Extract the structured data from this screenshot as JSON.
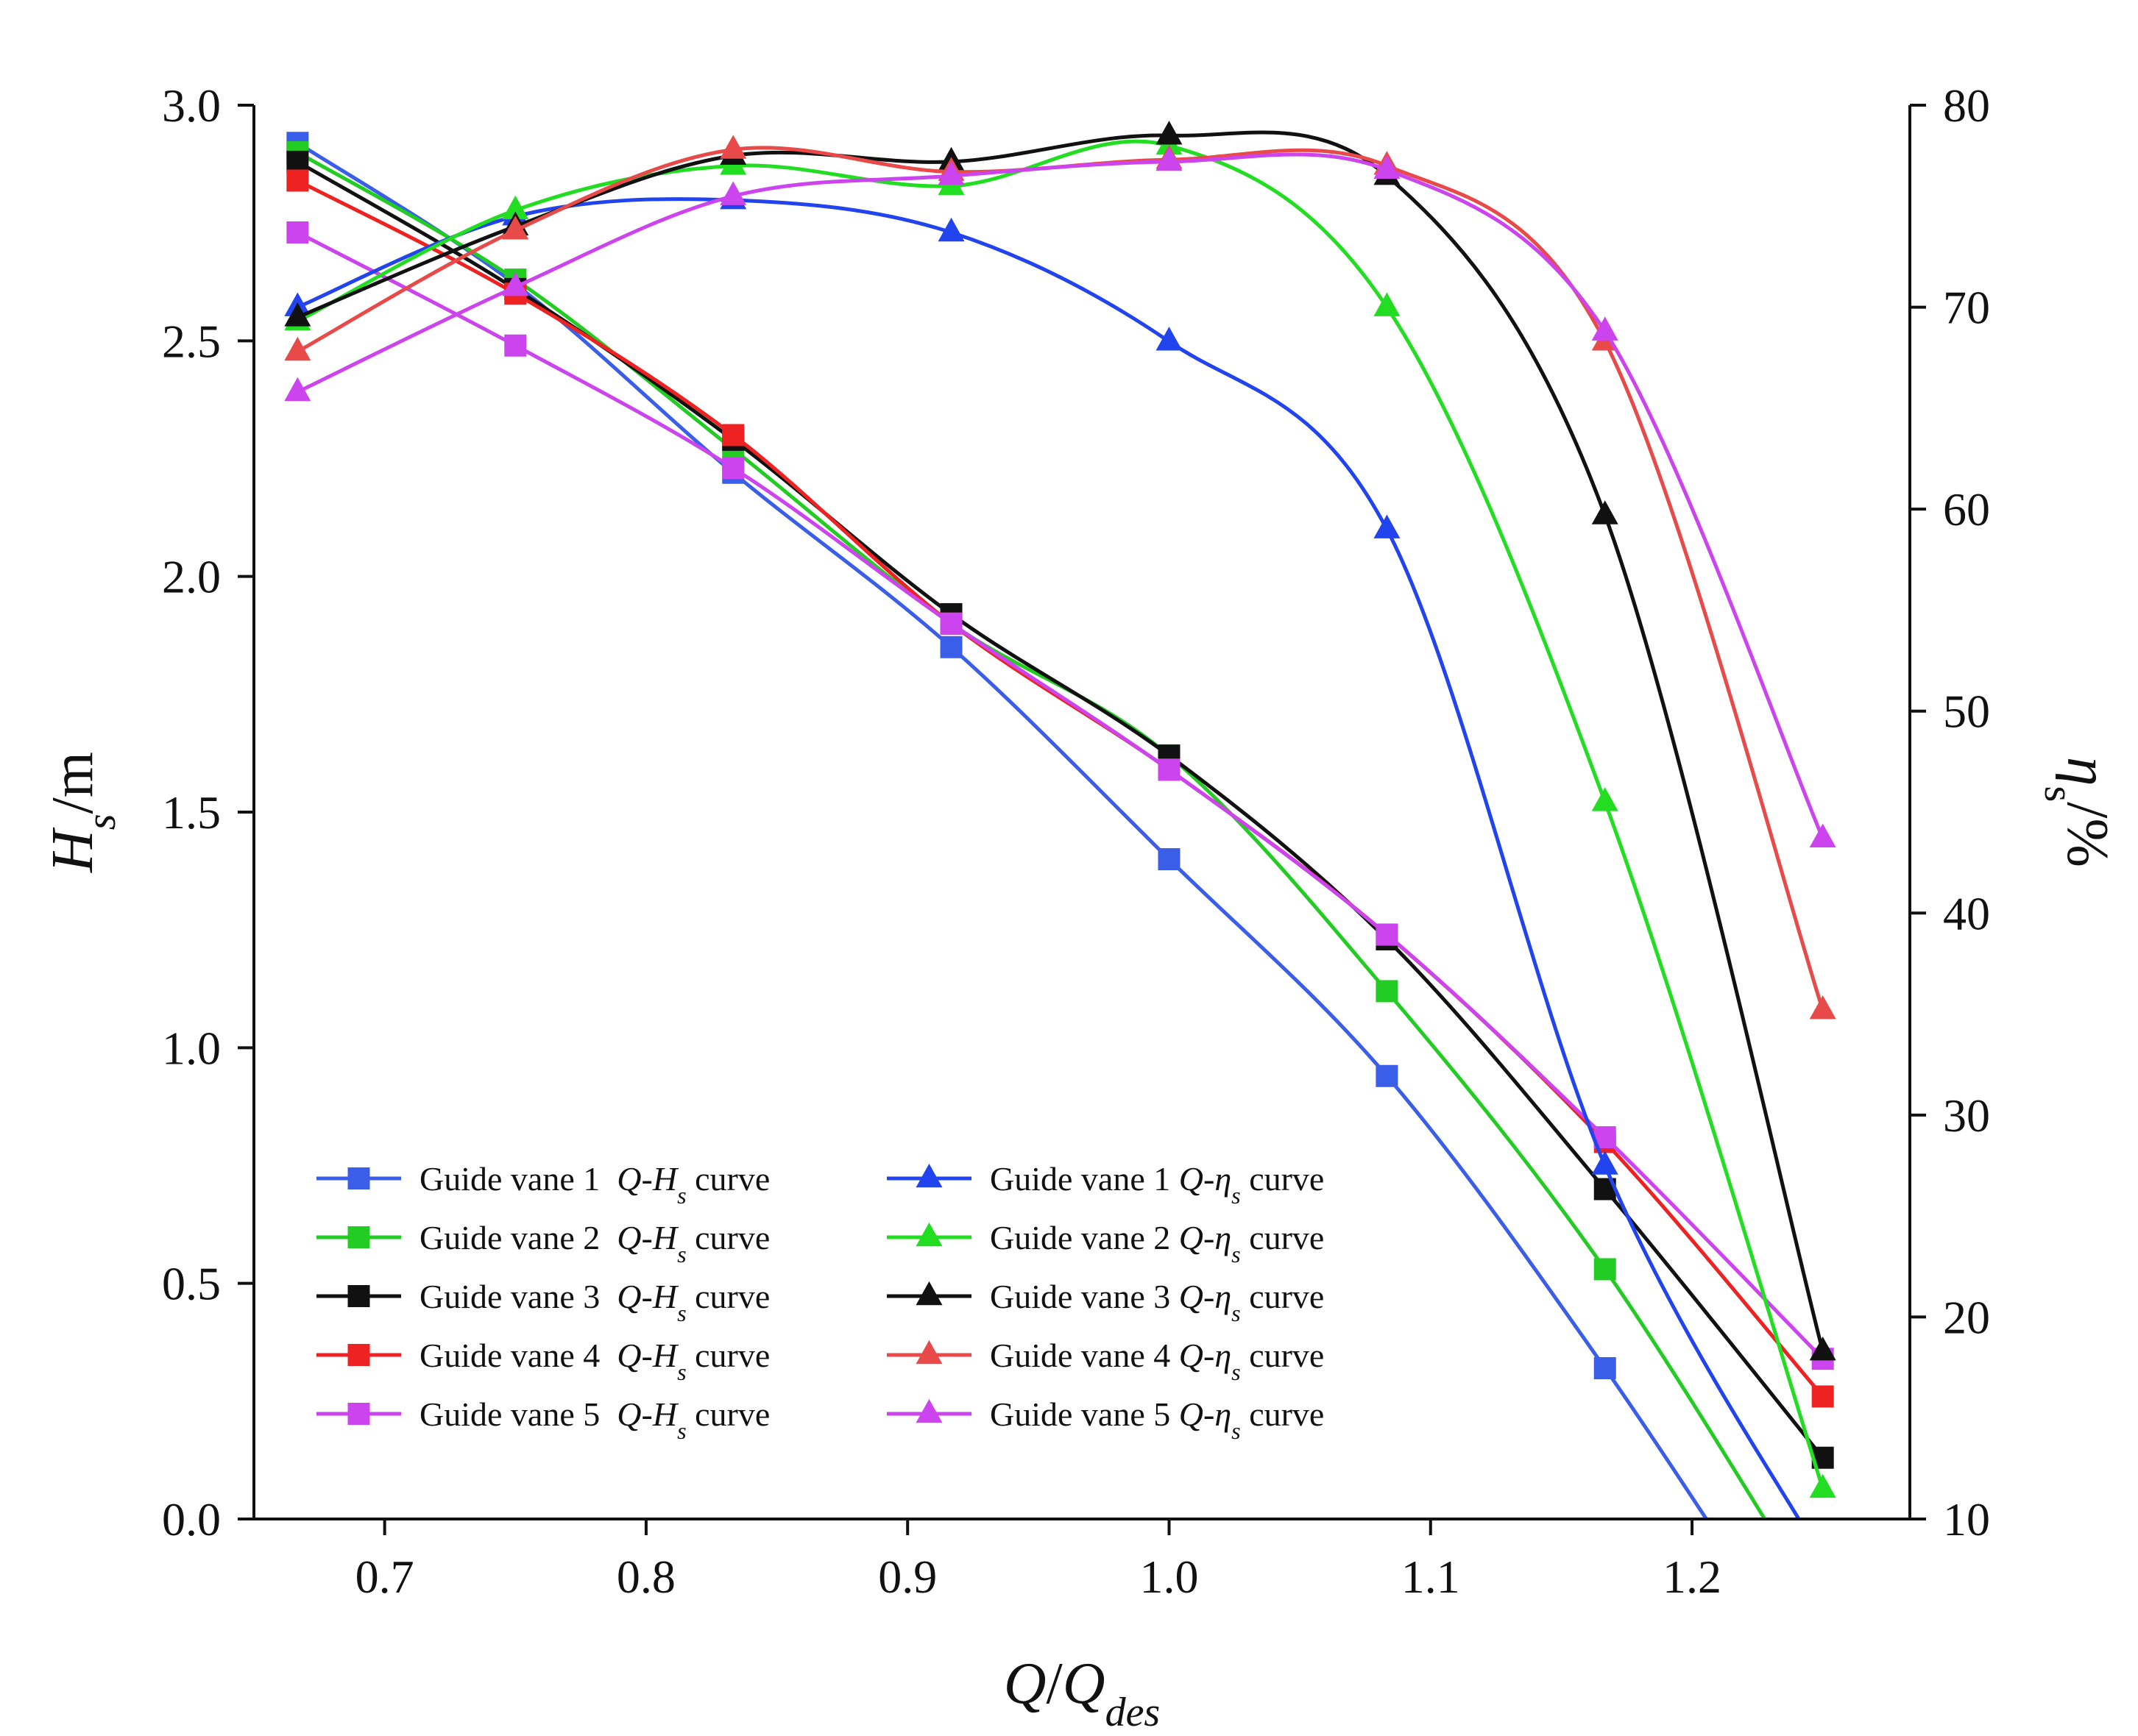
{
  "chart_data": {
    "type": "line",
    "x_axis": {
      "label_parts": [
        {
          "text": "Q",
          "italic": true,
          "sub": false
        },
        {
          "text": "/",
          "italic": false,
          "sub": false
        },
        {
          "text": "Q",
          "italic": true,
          "sub": false
        },
        {
          "text": "des",
          "italic": true,
          "sub": true
        }
      ],
      "range": [
        0.65,
        1.2833
      ],
      "ticks": [
        0.7,
        0.8,
        0.9,
        1.0,
        1.1,
        1.2
      ],
      "tick_labels": [
        "0.7",
        "0.8",
        "0.9",
        "1.0",
        "1.1",
        "1.2"
      ]
    },
    "y_left": {
      "label_parts": [
        {
          "text": "H",
          "italic": true,
          "sub": false
        },
        {
          "text": "s",
          "italic": true,
          "sub": true
        },
        {
          "text": "/m",
          "italic": false,
          "sub": false
        }
      ],
      "range": [
        0,
        3.0
      ],
      "ticks": [
        0.0,
        0.5,
        1.0,
        1.5,
        2.0,
        2.5,
        3.0
      ],
      "tick_labels": [
        "0.0",
        "0.5",
        "1.0",
        "1.5",
        "2.0",
        "2.5",
        "3.0"
      ]
    },
    "y_right": {
      "label_parts": [
        {
          "text": "η",
          "italic": true,
          "sub": false
        },
        {
          "text": "s",
          "italic": false,
          "sub": true
        },
        {
          "text": "/%",
          "italic": false,
          "sub": false
        }
      ],
      "range": [
        10,
        80
      ],
      "ticks": [
        10,
        20,
        30,
        40,
        50,
        60,
        70,
        80
      ],
      "tick_labels": [
        "10",
        "20",
        "30",
        "40",
        "50",
        "60",
        "70",
        "80"
      ]
    },
    "x": [
      0.6667,
      0.75,
      0.8333,
      0.9167,
      1.0,
      1.0833,
      1.1667,
      1.25
    ],
    "series": [
      {
        "name": "Guide vane 1  Q-Hs curve",
        "legend_parts": [
          "Guide vane 1  ",
          "Q",
          "-",
          "H",
          "s",
          " curve"
        ],
        "axis": "left",
        "marker": "square",
        "color": "#3b5ee8",
        "values": [
          2.92,
          2.62,
          2.22,
          1.85,
          1.4,
          0.94,
          0.32,
          -0.38
        ]
      },
      {
        "name": "Guide vane 2  Q-Hs curve",
        "legend_parts": [
          "Guide vane 2  ",
          "Q",
          "-",
          "H",
          "s",
          " curve"
        ],
        "axis": "left",
        "marker": "square",
        "color": "#22cc22",
        "values": [
          2.9,
          2.63,
          2.27,
          1.9,
          1.62,
          1.12,
          0.53,
          -0.2
        ]
      },
      {
        "name": "Guide vane 3  Q-Hs curve",
        "legend_parts": [
          "Guide vane 3  ",
          "Q",
          "-",
          "H",
          "s",
          " curve"
        ],
        "axis": "left",
        "marker": "square",
        "color": "#111111",
        "values": [
          2.88,
          2.61,
          2.29,
          1.92,
          1.62,
          1.23,
          0.7,
          0.13
        ]
      },
      {
        "name": "Guide vane 4  Q-Hs curve",
        "legend_parts": [
          "Guide vane 4  ",
          "Q",
          "-",
          "H",
          "s",
          " curve"
        ],
        "axis": "left",
        "marker": "square",
        "color": "#ee2222",
        "values": [
          2.84,
          2.6,
          2.3,
          1.9,
          1.59,
          1.24,
          0.8,
          0.26
        ]
      },
      {
        "name": "Guide vane 5  Q-Hs curve",
        "legend_parts": [
          "Guide vane 5  ",
          "Q",
          "-",
          "H",
          "s",
          " curve"
        ],
        "axis": "left",
        "marker": "square",
        "color": "#cc44ee",
        "values": [
          2.73,
          2.49,
          2.23,
          1.9,
          1.59,
          1.24,
          0.81,
          0.34
        ]
      },
      {
        "name": "Guide vane 1 Q-ηs curve",
        "legend_parts": [
          "Guide vane 1 ",
          "Q",
          "-",
          "η",
          "s",
          " curve"
        ],
        "axis": "right",
        "marker": "triangle",
        "color": "#2244ee",
        "values": [
          70.0,
          74.5,
          75.3,
          73.7,
          68.3,
          59.0,
          27.5,
          8.0
        ]
      },
      {
        "name": "Guide vane 2 Q-ηs curve",
        "legend_parts": [
          "Guide vane 2 ",
          "Q",
          "-",
          "η",
          "s",
          " curve"
        ],
        "axis": "right",
        "marker": "triangle",
        "color": "#22dd22",
        "values": [
          69.3,
          74.8,
          77.0,
          76.0,
          78.0,
          70.0,
          45.5,
          11.5
        ]
      },
      {
        "name": "Guide vane 3 Q-ηs curve",
        "legend_parts": [
          "Guide vane 3 ",
          "Q",
          "-",
          "η",
          "s",
          " curve"
        ],
        "axis": "right",
        "marker": "triangle",
        "color": "#111111",
        "values": [
          69.5,
          74.0,
          77.5,
          77.2,
          78.5,
          76.5,
          59.7,
          18.3
        ]
      },
      {
        "name": "Guide vane 4 Q-ηs curve",
        "legend_parts": [
          "Guide vane 4 ",
          "Q",
          "-",
          "η",
          "s",
          " curve"
        ],
        "axis": "right",
        "marker": "triangle",
        "color": "#e84a4a",
        "values": [
          67.8,
          73.8,
          77.8,
          76.7,
          77.3,
          77.0,
          68.3,
          35.2
        ]
      },
      {
        "name": "Guide vane 5 Q-ηs curve",
        "legend_parts": [
          "Guide vane 5 ",
          "Q",
          "-",
          "η",
          "s",
          " curve"
        ],
        "axis": "right",
        "marker": "triangle",
        "color": "#cc44ee",
        "values": [
          65.8,
          71.0,
          75.5,
          76.5,
          77.2,
          76.8,
          68.8,
          43.7
        ]
      }
    ],
    "legend_position": "bottom-left",
    "grid": false
  }
}
